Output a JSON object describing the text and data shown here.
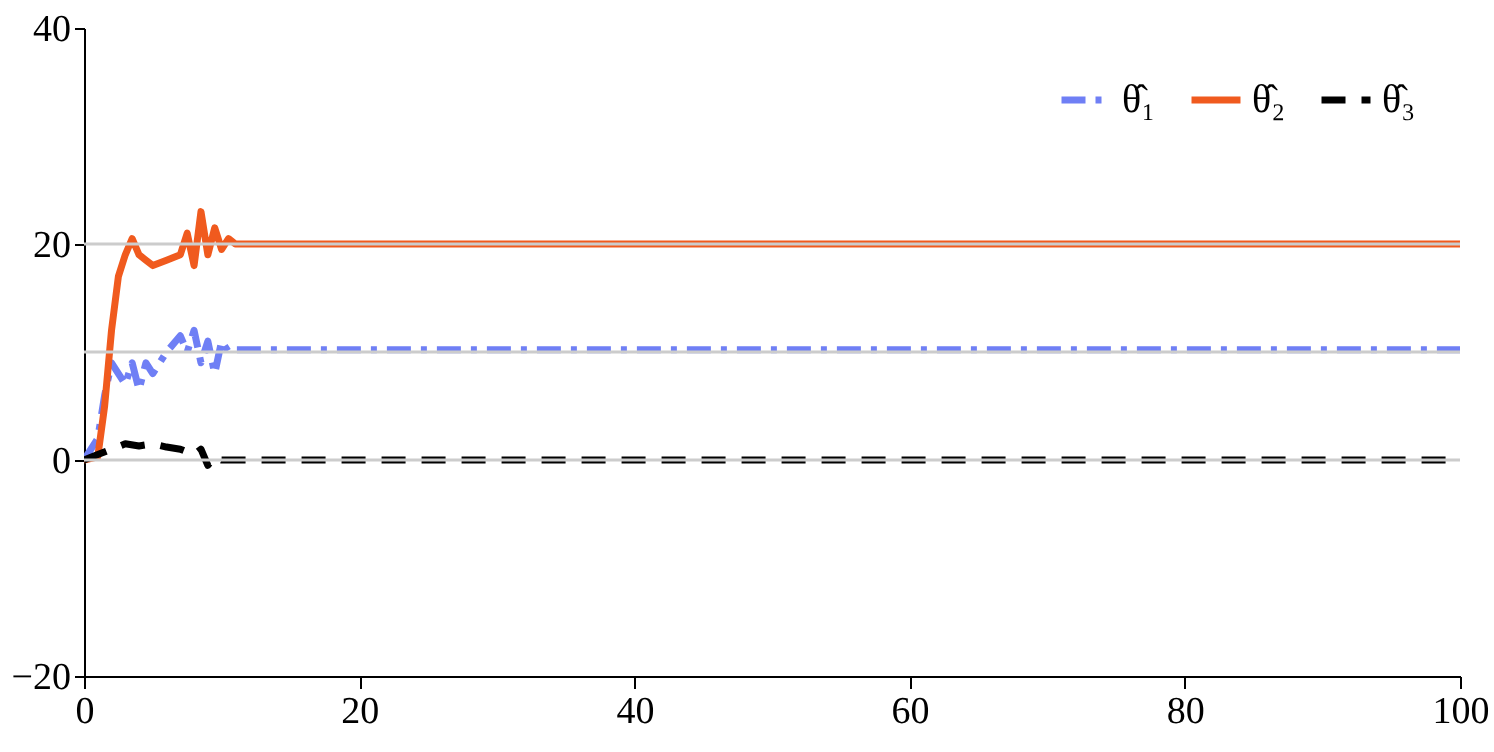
{
  "chart_data": {
    "type": "line",
    "xlim": [
      0,
      100
    ],
    "ylim": [
      -20,
      40
    ],
    "xticks": [
      0,
      20,
      40,
      60,
      80,
      100
    ],
    "yticks": [
      -20,
      0,
      20,
      40
    ],
    "legend": "top right",
    "series": [
      {
        "name": "θ̂₁",
        "color": "#6f7ff5",
        "line_style": "dashdot",
        "x": [
          0,
          1,
          1.5,
          2,
          2.5,
          3,
          3.5,
          4,
          4.5,
          5,
          6,
          7,
          7.5,
          8,
          8.5,
          9,
          9.5,
          10,
          10.5,
          11,
          100
        ],
        "values": [
          0,
          2,
          6,
          9,
          8,
          7,
          9,
          6.5,
          9,
          8,
          10,
          11.5,
          10,
          12,
          9,
          11,
          8,
          11,
          10,
          10.2,
          10.2
        ]
      },
      {
        "name": "θ̂₂",
        "color": "#f05a1e",
        "line_style": "solid",
        "x": [
          0,
          1,
          1.5,
          2,
          2.5,
          3,
          3.5,
          4,
          4.5,
          5,
          6,
          7,
          7.5,
          8,
          8.5,
          9,
          9.5,
          10,
          10.5,
          11,
          100
        ],
        "values": [
          0,
          0.3,
          5,
          12,
          17,
          19,
          20.5,
          19,
          18.5,
          18,
          18.5,
          19,
          21,
          18,
          23,
          19,
          21.5,
          19.5,
          20.5,
          20,
          20
        ]
      },
      {
        "name": "θ̂₃",
        "color": "#000000",
        "line_style": "dashed",
        "x": [
          0,
          1,
          2,
          3,
          4,
          5,
          6,
          7,
          8,
          8.5,
          9,
          9.5,
          10,
          100
        ],
        "values": [
          0,
          0.5,
          1,
          1.5,
          1.3,
          1.5,
          1.2,
          1,
          0.5,
          1,
          -0.5,
          0.3,
          0,
          0
        ]
      }
    ],
    "ref_lines": [
      {
        "axis": "y",
        "value": 0,
        "color": "#cccccc"
      },
      {
        "axis": "y",
        "value": 10,
        "color": "#cccccc"
      },
      {
        "axis": "y",
        "value": 20,
        "color": "#cccccc"
      }
    ]
  }
}
